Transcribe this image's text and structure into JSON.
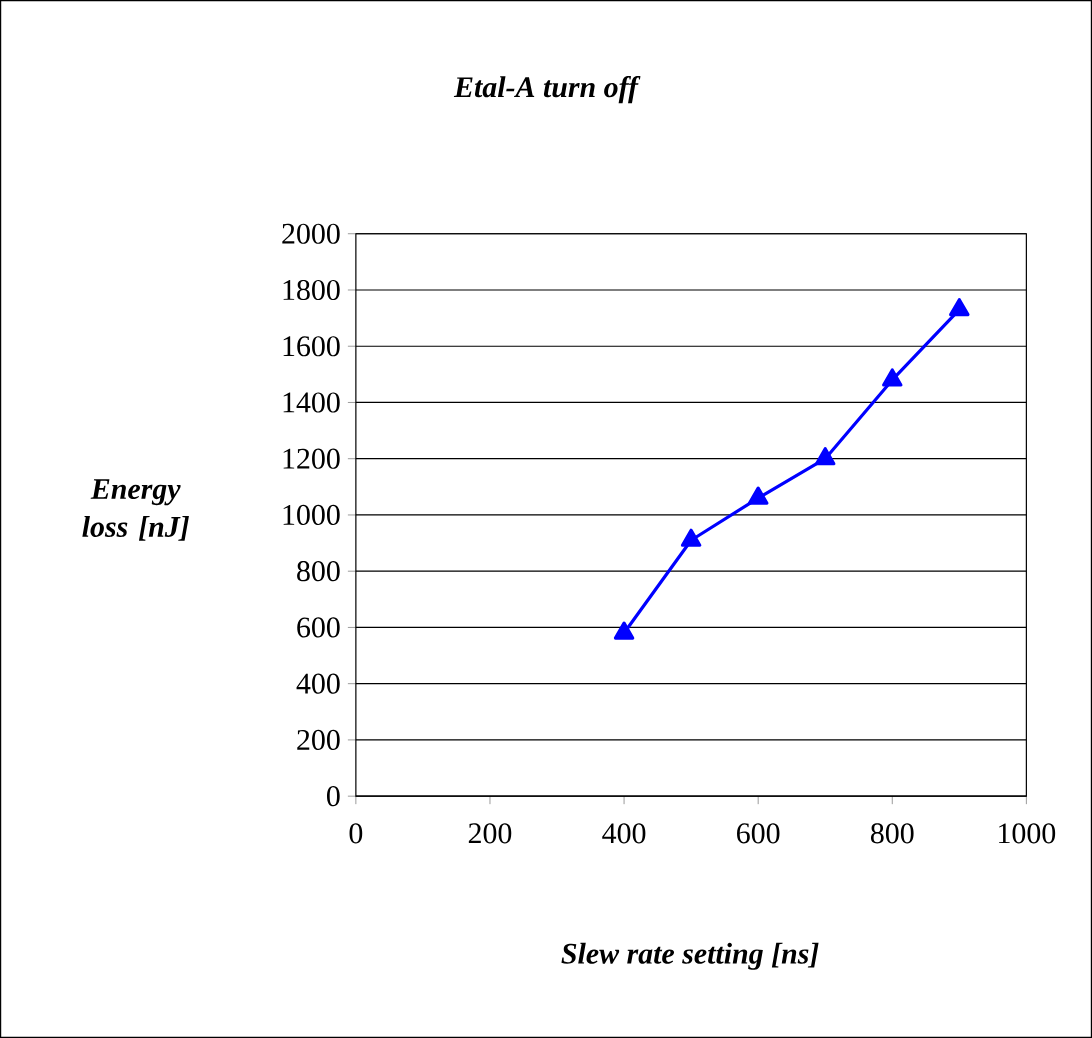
{
  "chart_data": {
    "type": "line",
    "title": "Etal-A turn off",
    "xlabel": "Slew rate setting [ns]",
    "ylabel": "Energy loss [nJ]",
    "x": [
      400,
      500,
      600,
      700,
      800,
      900
    ],
    "series": [
      {
        "color": "#0000ff",
        "values": [
          580,
          910,
          1060,
          1200,
          1480,
          1730
        ]
      }
    ],
    "xlim": [
      0,
      1000
    ],
    "xticks": [
      0,
      200,
      400,
      600,
      800,
      1000
    ],
    "ylim": [
      0,
      2000
    ],
    "yticks": [
      0,
      200,
      400,
      600,
      800,
      1000,
      1200,
      1400,
      1600,
      1800,
      2000
    ],
    "grid": "y",
    "marker": "triangle",
    "line_style": "solid"
  }
}
